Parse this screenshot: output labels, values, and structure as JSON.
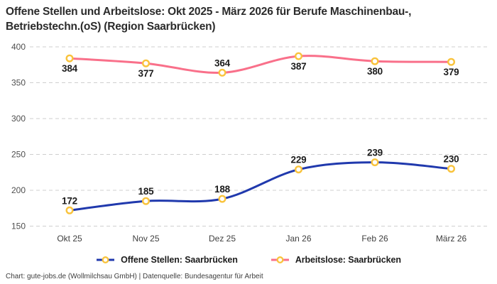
{
  "title_lines": [
    "Offene Stellen und Arbeitslose: Okt 2025 - März 2026 für Berufe Maschinenbau-,",
    "Betriebstechn.(oS) (Region Saarbrücken)"
  ],
  "legend": [
    {
      "label": "Offene Stellen: Saarbrücken",
      "color": "#2039ad"
    },
    {
      "label": "Arbeitslose: Saarbrücken",
      "color": "#f9708a"
    }
  ],
  "footer": "Chart: gute-jobs.de (Wollmilchsau GmbH) | Datenquelle: Bundesagentur für Arbeit",
  "colors": {
    "offene_stellen_line": "#2039ad",
    "arbeitslose_line": "#f9708a",
    "marker_ring": "#f9c33c",
    "marker_fill": "#ffffff",
    "grid": "#cfcfcf"
  },
  "chart_data": {
    "type": "line",
    "title": "Offene Stellen und Arbeitslose: Okt 2025 - März 2026 für Berufe Maschinenbau-, Betriebstechn.(oS) (Region Saarbrücken)",
    "categories": [
      "Okt 25",
      "Nov 25",
      "Dez 25",
      "Jan 26",
      "Feb 26",
      "März 26"
    ],
    "series": [
      {
        "name": "Offene Stellen: Saarbrücken",
        "color": "#2039ad",
        "values": [
          172,
          185,
          188,
          229,
          239,
          230
        ],
        "label_positions": [
          "above",
          "above",
          "above",
          "above",
          "above",
          "above"
        ]
      },
      {
        "name": "Arbeitslose: Saarbrücken",
        "color": "#f9708a",
        "values": [
          384,
          377,
          364,
          387,
          380,
          379
        ],
        "label_positions": [
          "below",
          "below",
          "above",
          "below",
          "below",
          "below"
        ]
      }
    ],
    "yticks": [
      400,
      350,
      300,
      250,
      200,
      150
    ],
    "ylim": [
      140,
      405
    ],
    "grid": "horizontal-dashed",
    "legend_position": "bottom",
    "marker_style": "open-circle-gold"
  }
}
